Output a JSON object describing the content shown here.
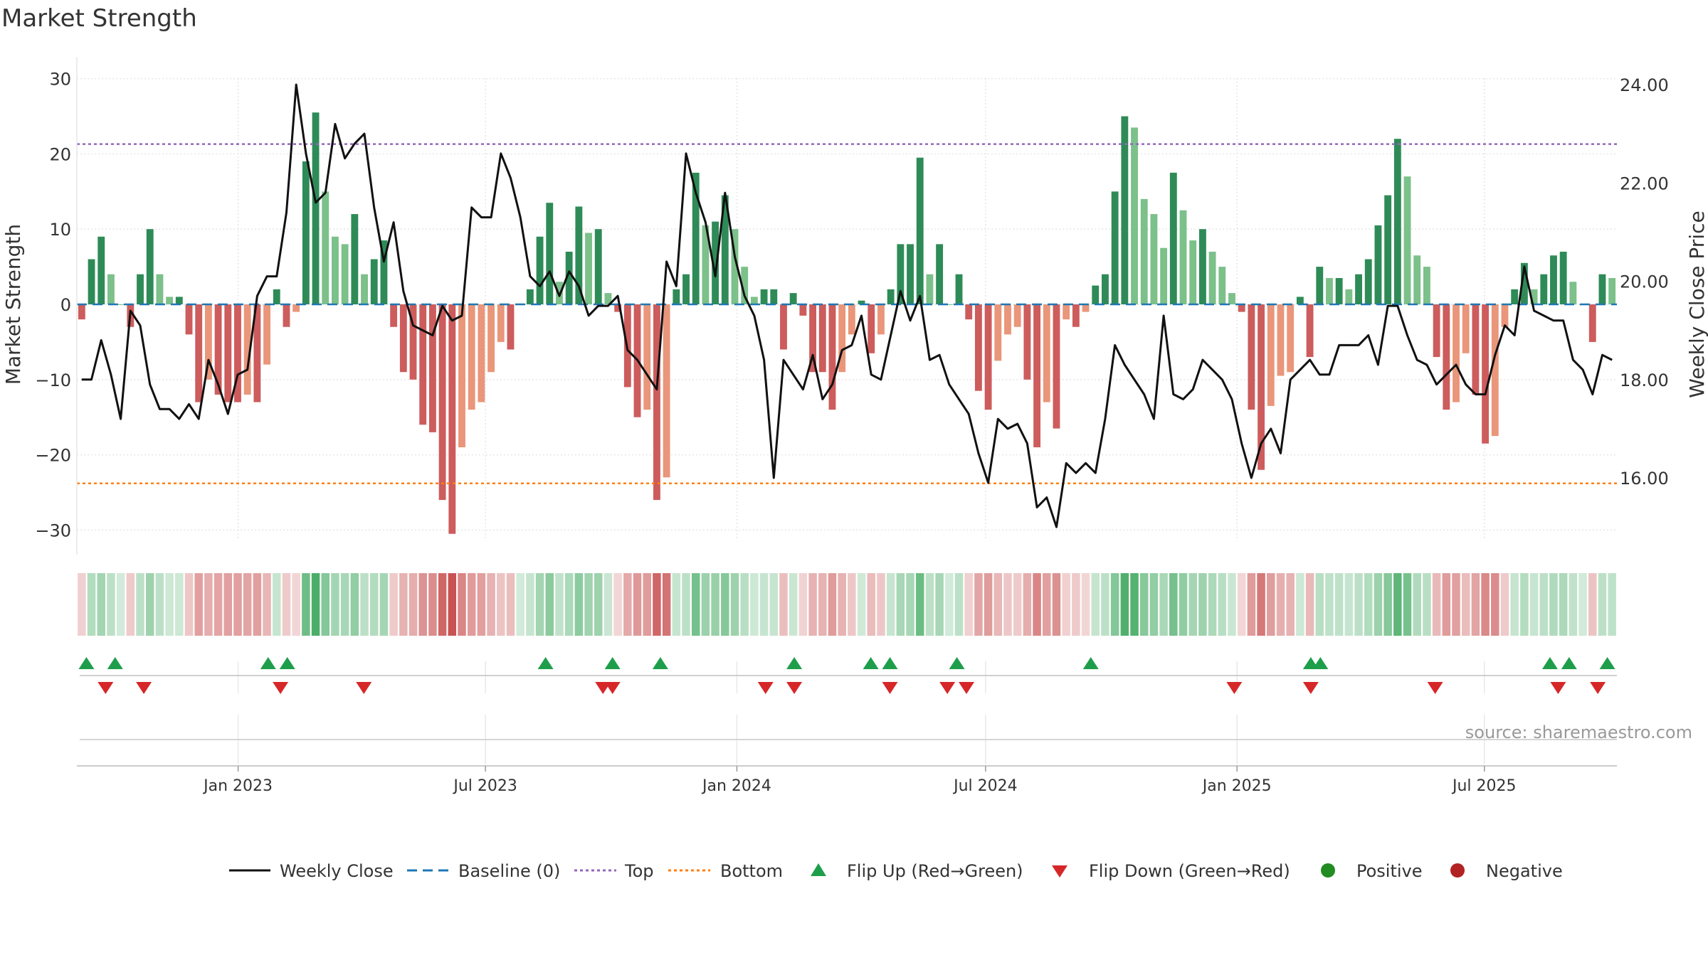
{
  "chart_data": {
    "type": "bar+line",
    "title": "Market Strength",
    "ylabel_left": "Market Strength",
    "ylabel_right": "Weekly Close Price",
    "ylim_left": [
      -33,
      33
    ],
    "ylim_right": [
      14.8,
      24.6
    ],
    "yticks_left": [
      "30",
      "20",
      "10",
      "0",
      "−10",
      "−20",
      "−30"
    ],
    "yticks_left_values": [
      30,
      20,
      10,
      0,
      -10,
      -20,
      -30
    ],
    "yticks_right": [
      "24.00",
      "22.00",
      "20.00",
      "18.00",
      "16.00"
    ],
    "yticks_right_values": [
      24,
      22,
      20,
      18,
      16
    ],
    "x_start": "2022-09-05",
    "x_end": "2025-10-06",
    "x_ticks": [
      {
        "date": "2023-01-01",
        "label": "Jan 2023"
      },
      {
        "date": "2023-07-01",
        "label": "Jul 2023"
      },
      {
        "date": "2024-01-01",
        "label": "Jan 2024"
      },
      {
        "date": "2024-07-01",
        "label": "Jul 2024"
      },
      {
        "date": "2025-01-01",
        "label": "Jan 2025"
      },
      {
        "date": "2025-07-01",
        "label": "Jul 2025"
      }
    ],
    "top_level": 21.3,
    "bottom_level": -23.8,
    "strength": [
      -2,
      6,
      9,
      4,
      0,
      -3,
      4,
      10,
      4,
      1,
      1,
      -4,
      -13,
      -10,
      -12,
      -13,
      -13,
      -12,
      -13,
      -8,
      2,
      -3,
      -1,
      19,
      25.5,
      15,
      9,
      8,
      12,
      4,
      6,
      8.5,
      -3,
      -9,
      -10,
      -16,
      -17,
      -26,
      -30.5,
      -19,
      -14,
      -13,
      -9,
      -5,
      -6,
      0,
      2,
      9,
      13.5,
      3,
      7,
      13,
      9.5,
      10,
      1.5,
      -1,
      -11,
      -15,
      -14,
      -26,
      -23,
      2,
      4,
      17.5,
      10.5,
      11,
      14.5,
      10,
      5,
      1,
      2,
      2,
      -6,
      1.5,
      -1.5,
      -9,
      -9,
      -14,
      -9,
      -4,
      0.5,
      -6.5,
      -4,
      2,
      8,
      8,
      19.5,
      4,
      8,
      0,
      4,
      -2,
      -11.5,
      -14,
      -7.5,
      -4,
      -3,
      -10,
      -19,
      -13,
      -16.5,
      -2,
      -3,
      -1,
      2.5,
      4,
      15,
      25,
      23.5,
      14,
      12,
      7.5,
      17.5,
      12.5,
      8.5,
      10,
      7,
      5,
      1.5,
      -1,
      -14,
      -22,
      -13.5,
      -9.5,
      -9,
      1,
      -7,
      5,
      3.5,
      3.5,
      2,
      4,
      6,
      10.5,
      14.5,
      22,
      17,
      6.5,
      5,
      -7,
      -14,
      -13,
      -6.5,
      -12,
      -18.5,
      -17.5,
      -3,
      2,
      5.5,
      2,
      4,
      6.5,
      7,
      3,
      0,
      -5,
      4,
      3.5
    ],
    "close": [
      18,
      18,
      18.8,
      18.1,
      17.2,
      19.4,
      19.1,
      17.9,
      17.4,
      17.4,
      17.2,
      17.5,
      17.2,
      18.4,
      17.9,
      17.3,
      18.1,
      18.2,
      19.7,
      20.1,
      20.1,
      21.4,
      24,
      22.6,
      21.6,
      21.8,
      23.2,
      22.5,
      22.8,
      23,
      21.5,
      20.4,
      21.2,
      19.8,
      19.1,
      19,
      18.9,
      19.5,
      19.2,
      19.3,
      21.5,
      21.3,
      21.3,
      22.6,
      22.1,
      21.3,
      20.1,
      19.9,
      20.2,
      19.7,
      20.2,
      19.9,
      19.3,
      19.5,
      19.5,
      19.7,
      18.6,
      18.4,
      18.1,
      17.8,
      20.4,
      19.9,
      22.6,
      21.8,
      21.2,
      20.1,
      21.8,
      20.5,
      19.7,
      19.3,
      18.4,
      16,
      18.4,
      18.1,
      17.8,
      18.5,
      17.6,
      17.9,
      18.6,
      18.7,
      19.3,
      18.1,
      18,
      18.9,
      19.8,
      19.2,
      19.7,
      18.4,
      18.5,
      17.9,
      17.6,
      17.3,
      16.5,
      15.9,
      17.2,
      17,
      17.1,
      16.7,
      15.4,
      15.6,
      15,
      16.3,
      16.1,
      16.3,
      16.1,
      17.2,
      18.7,
      18.3,
      18,
      17.7,
      17.2,
      19.3,
      17.7,
      17.6,
      17.8,
      18.4,
      18.2,
      18,
      17.6,
      16.7,
      16,
      16.7,
      17,
      16.5,
      18,
      18.2,
      18.4,
      18.1,
      18.1,
      18.7,
      18.7,
      18.7,
      18.9,
      18.3,
      19.5,
      19.5,
      18.9,
      18.4,
      18.3,
      17.9,
      18.1,
      18.3,
      17.9,
      17.7,
      17.7,
      18.5,
      19.1,
      18.9,
      20.3,
      19.4,
      19.3,
      19.2,
      19.2,
      18.4,
      18.2,
      17.7,
      18.5,
      18.4
    ],
    "flip_up": [
      "2022-09-12",
      "2022-10-03",
      "2023-01-23",
      "2023-02-06",
      "2023-08-14",
      "2023-10-02",
      "2023-11-06",
      "2024-02-12",
      "2024-04-08",
      "2024-04-22",
      "2024-06-10",
      "2024-09-16",
      "2025-02-24",
      "2025-03-03",
      "2025-08-18",
      "2025-09-01",
      "2025-09-29"
    ],
    "flip_down": [
      "2022-09-26",
      "2022-10-24",
      "2023-02-01",
      "2023-04-03",
      "2023-09-25",
      "2023-10-02",
      "2024-01-22",
      "2024-02-12",
      "2024-04-22",
      "2024-06-03",
      "2024-06-17",
      "2024-12-30",
      "2025-02-24",
      "2025-05-26",
      "2025-08-24",
      "2025-09-22"
    ],
    "legend": [
      "Weekly Close",
      "Baseline (0)",
      "Top",
      "Bottom",
      "Flip Up (Red→Green)",
      "Flip Down (Green→Red)",
      "Positive",
      "Negative"
    ],
    "legend_placement": "bottom-center",
    "colors": {
      "pos_strong": "#2e8b57",
      "pos_weak": "#7cc08a",
      "neg_strong": "#cd5c5c",
      "neg_weak": "#e9967a",
      "close_line": "#111111",
      "baseline": "#1f77b4",
      "top": "#9467bd",
      "bottom": "#ff7f0e",
      "flip_up": "#1e9e4a",
      "flip_down": "#d62728",
      "positive_dot": "#228b22",
      "negative_dot": "#b22222",
      "grid": "#e6e6e6",
      "axis_text": "#333333"
    }
  },
  "source": "source: sharemaestro.com"
}
